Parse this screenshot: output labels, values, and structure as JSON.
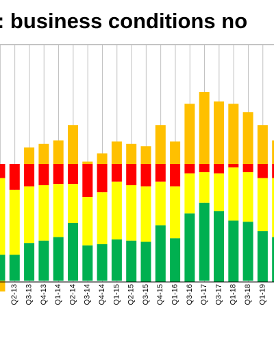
{
  "chart_data": {
    "type": "bar",
    "stacked": true,
    "title": ": business conditions no",
    "categories": [
      null,
      "Q2-13",
      "Q3-13",
      "Q4-13",
      "Q1-14",
      "Q2-14",
      "Q3-14",
      "Q4-14",
      "Q1-15",
      "Q2-15",
      "Q3-15",
      "Q4-15",
      "Q1-16",
      "Q3-16",
      "Q1-17",
      "Q3-17",
      "Q1-18",
      "Q3-18",
      "Q1-19",
      null
    ],
    "series": [
      {
        "color": "#ff0000",
        "values": [
          -12,
          -22,
          -19,
          -18,
          -17,
          -17,
          -28,
          -24,
          -15,
          -18,
          -19,
          -15,
          -19,
          -8,
          -7,
          -8,
          -3,
          -7,
          -12,
          -12
        ]
      },
      {
        "color": "#ffff00",
        "values": [
          -65,
          -55,
          -48,
          -47,
          -45,
          -33,
          -41,
          -44,
          -49,
          -47,
          -47,
          -37,
          -44,
          -34,
          -26,
          -32,
          -45,
          -42,
          -45,
          -50
        ]
      },
      {
        "color": "#00b050",
        "values": [
          -22,
          -22,
          -32,
          -34,
          -37,
          -49,
          -30,
          -31,
          -35,
          -35,
          -34,
          -48,
          -37,
          -58,
          -66,
          -60,
          -52,
          -50,
          -43,
          -38
        ]
      },
      {
        "color": "#ffc000",
        "values": [
          -9,
          0,
          14,
          17,
          20,
          33,
          2,
          9,
          19,
          17,
          15,
          33,
          19,
          51,
          61,
          53,
          51,
          44,
          33,
          20
        ]
      }
    ],
    "ylim": [
      -100,
      100
    ],
    "grid": true
  }
}
